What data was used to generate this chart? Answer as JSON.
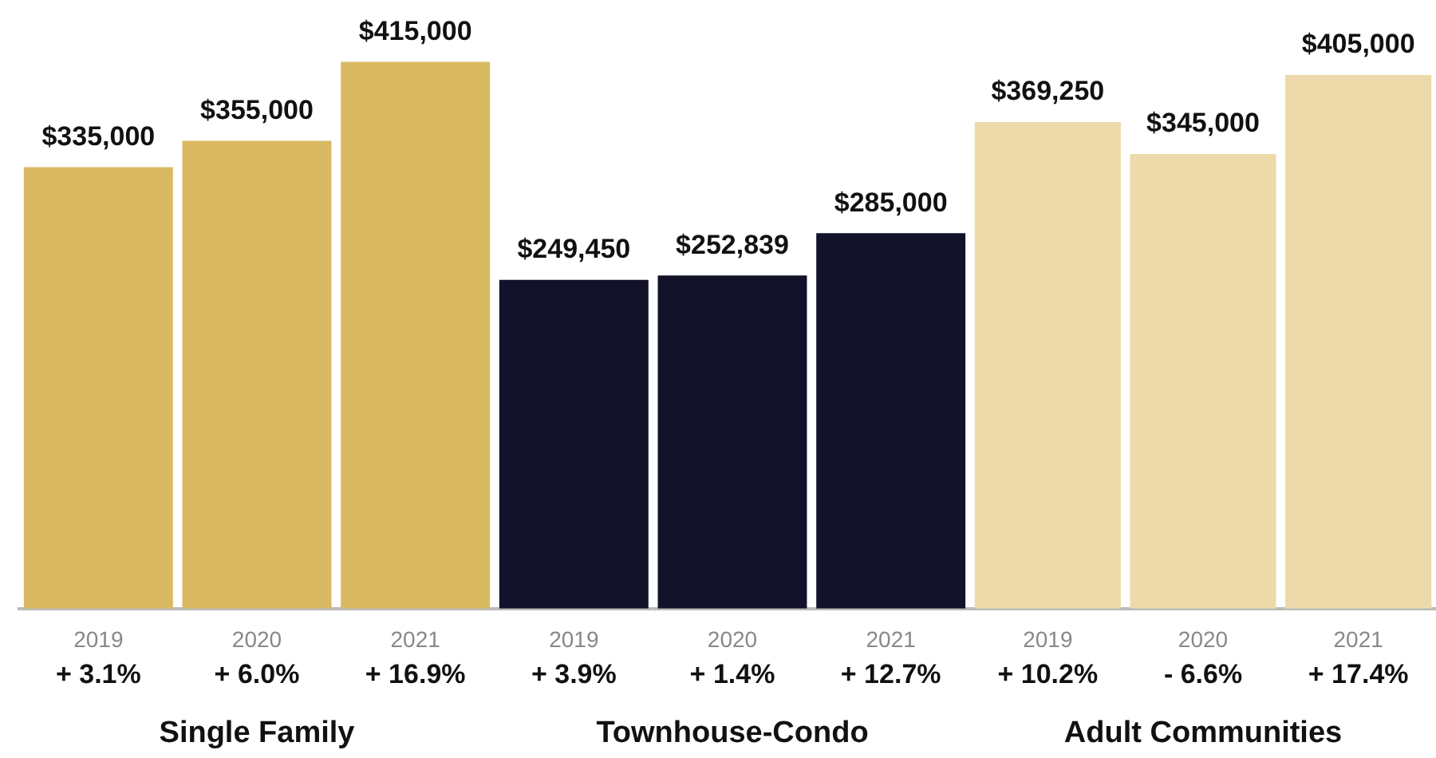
{
  "chart_data": [
    {
      "type": "bar",
      "xlabel": "Single Family",
      "categories": [
        "2019",
        "2020",
        "2021"
      ],
      "values": [
        335000,
        355000,
        415000
      ],
      "color": "#d9b962",
      "value_labels": [
        "$335,000",
        "$355,000",
        "$415,000"
      ],
      "annotations": [
        "+ 3.1%",
        "+ 6.0%",
        "+ 16.9%"
      ]
    },
    {
      "type": "bar",
      "xlabel": "Townhouse-Condo",
      "categories": [
        "2019",
        "2020",
        "2021"
      ],
      "values": [
        249450,
        252839,
        285000
      ],
      "color": "#13122b",
      "value_labels": [
        "$249,450",
        "$252,839",
        "$285,000"
      ],
      "annotations": [
        "+ 3.9%",
        "+ 1.4%",
        "+ 12.7%"
      ]
    },
    {
      "type": "bar",
      "xlabel": "Adult Communities",
      "categories": [
        "2019",
        "2020",
        "2021"
      ],
      "values": [
        369250,
        345000,
        405000
      ],
      "color": "#eddaaa",
      "value_labels": [
        "$369,250",
        "$345,000",
        "$405,000"
      ],
      "annotations": [
        "+ 10.2%",
        "- 6.6%",
        "+ 17.4%"
      ]
    }
  ]
}
